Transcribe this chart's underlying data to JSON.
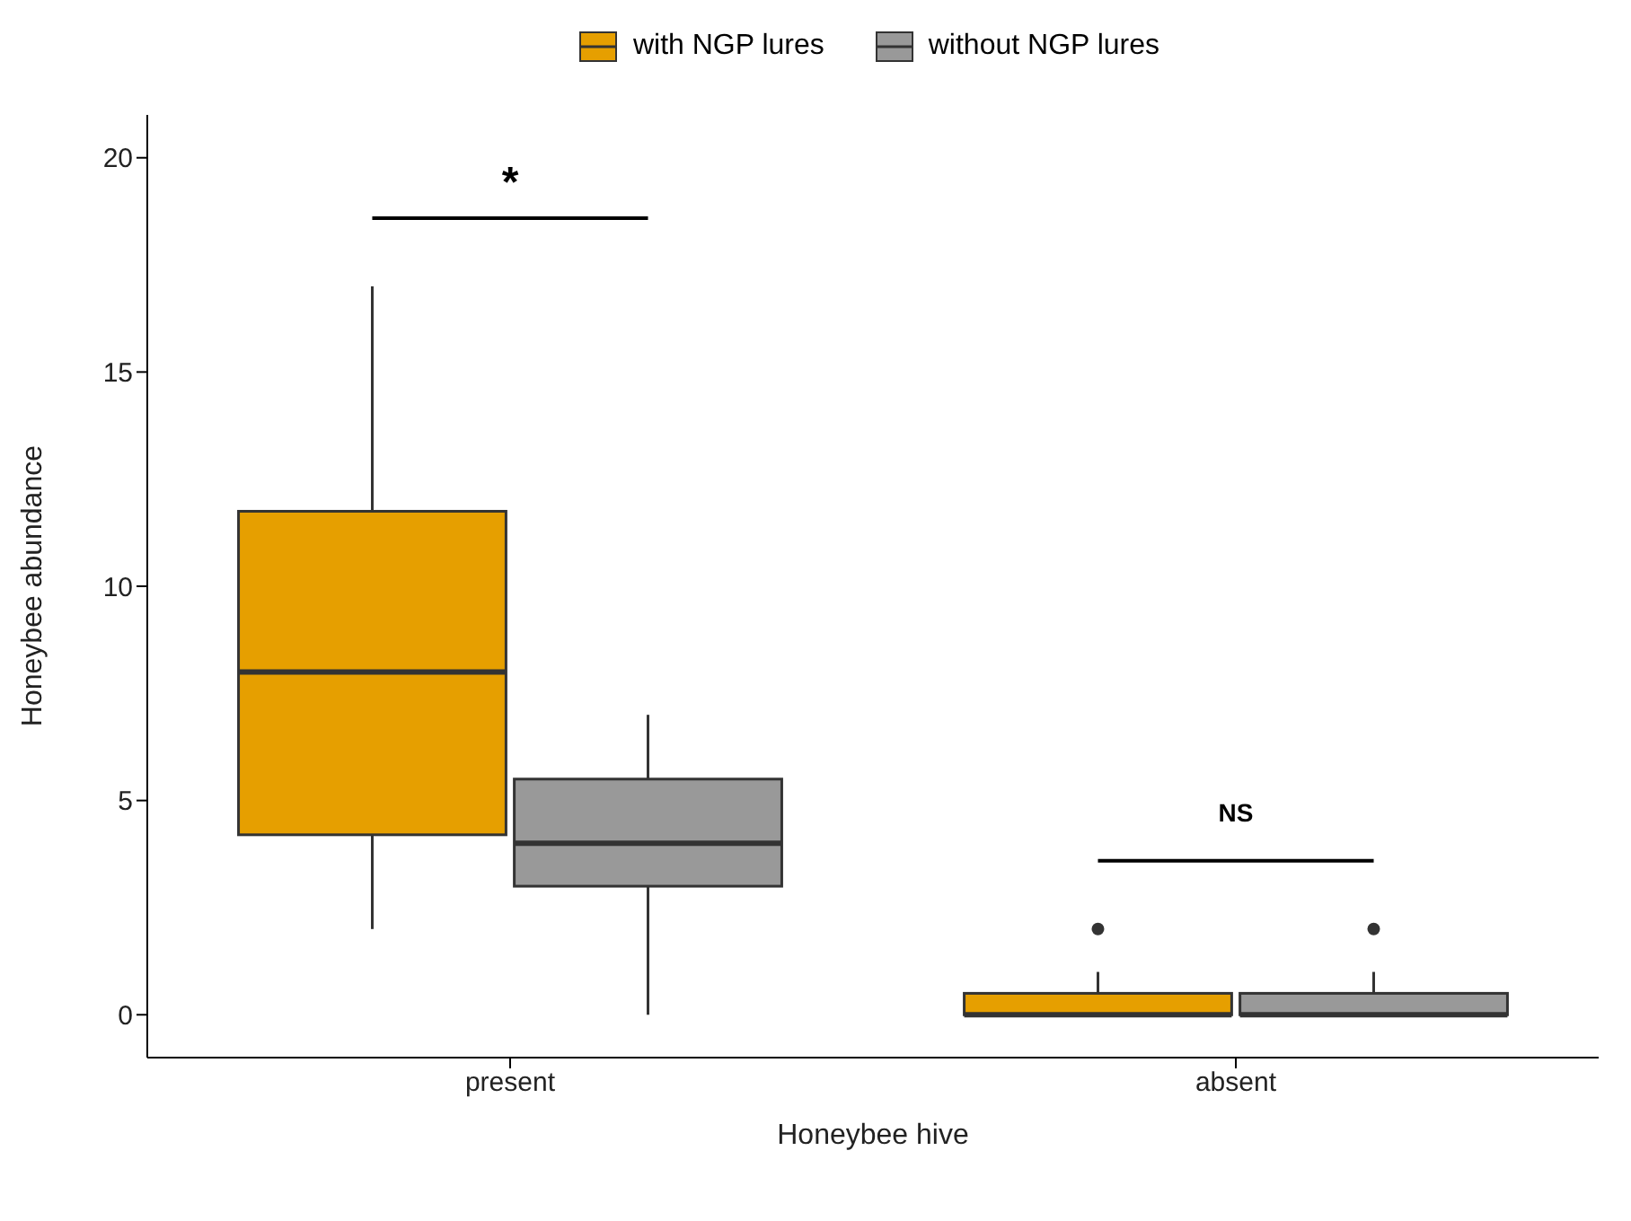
{
  "chart_data": {
    "type": "box",
    "xlabel": "Honeybee hive",
    "ylabel": "Honeybee abundance",
    "categories": [
      "present",
      "absent"
    ],
    "ylim": [
      -1,
      21
    ],
    "yticks": [
      0,
      5,
      10,
      15,
      20
    ],
    "grid": false,
    "legend": "top",
    "series": [
      {
        "name": "with NGP lures",
        "color": "#e69f00",
        "boxes": [
          {
            "low": 2,
            "q1": 4.2,
            "median": 8,
            "q3": 11.75,
            "high": 17
          },
          {
            "low": 0,
            "q1": 0,
            "median": 0,
            "q3": 0.5,
            "high": 1,
            "outliers": [
              2
            ]
          }
        ]
      },
      {
        "name": "without NGP lures",
        "color": "#999999",
        "boxes": [
          {
            "low": 0,
            "q1": 3,
            "median": 4,
            "q3": 5.5,
            "high": 7
          },
          {
            "low": 0,
            "q1": 0,
            "median": 0,
            "q3": 0.5,
            "high": 1,
            "outliers": [
              2
            ]
          }
        ]
      }
    ],
    "annotations": [
      "*",
      "NS"
    ]
  }
}
